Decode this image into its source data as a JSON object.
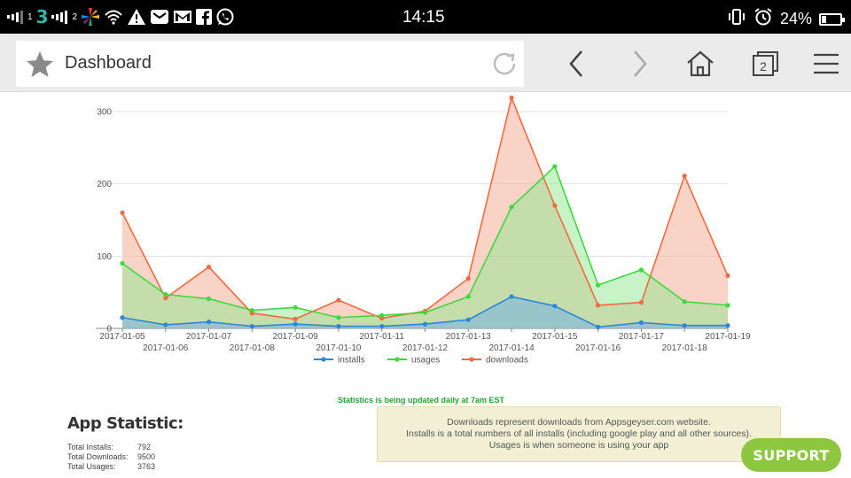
{
  "status_bar": {
    "network_label": "3",
    "sim1": "1",
    "sim2": "2",
    "time": "14:15",
    "battery": "24%",
    "battery_level": 0.24,
    "icons": [
      "signal-icon",
      "signal-icon",
      "pinwheel-icon",
      "wifi-icon",
      "warning-icon",
      "mail-icon",
      "gmail-icon",
      "facebook-icon",
      "whatsapp-icon",
      "vibrate-icon",
      "alarm-icon",
      "battery-icon"
    ]
  },
  "browser": {
    "page_title": "Dashboard",
    "tab_count": "2",
    "icons": [
      "star-icon",
      "reload-icon",
      "back-icon",
      "forward-icon",
      "home-icon",
      "tabs-icon",
      "menu-icon"
    ]
  },
  "chart_data": {
    "type": "area",
    "x": [
      "2017-01-05",
      "2017-01-06",
      "2017-01-07",
      "2017-01-08",
      "2017-01-09",
      "2017-01-10",
      "2017-01-11",
      "2017-01-12",
      "2017-01-13",
      "2017-01-14",
      "2017-01-15",
      "2017-01-16",
      "2017-01-17",
      "2017-01-18",
      "2017-01-19"
    ],
    "ylim": [
      0,
      300
    ],
    "yticks": [
      0,
      100,
      200,
      300
    ],
    "grid": true,
    "legend_position": "bottom",
    "series": [
      {
        "name": "installs",
        "color": "#2d86d6",
        "fill": "#6aaee8",
        "values": [
          15,
          5,
          9,
          3,
          6,
          3,
          3,
          6,
          12,
          44,
          31,
          2,
          8,
          4,
          4
        ]
      },
      {
        "name": "usages",
        "color": "#3fd83f",
        "fill": "#8fe88f",
        "values": [
          90,
          47,
          41,
          25,
          29,
          15,
          18,
          22,
          44,
          168,
          224,
          60,
          81,
          37,
          32
        ]
      },
      {
        "name": "downloads",
        "color": "#ef6b40",
        "fill": "#f6a88f",
        "values": [
          160,
          42,
          85,
          21,
          13,
          39,
          14,
          24,
          69,
          319,
          170,
          32,
          36,
          211,
          73
        ]
      }
    ]
  },
  "notice": "Statistics is being updated daily at 7am EST",
  "stats": {
    "title": "App Statistic:",
    "rows": [
      {
        "label": "Total Installs:",
        "value": "792"
      },
      {
        "label": "Total Downloads:",
        "value": "9500"
      },
      {
        "label": "Total Usages:",
        "value": "3763"
      }
    ]
  },
  "info": {
    "line1": "Downloads represent downloads from Appsgeyser.com website.",
    "line2": "Installs is a total numbers of all installs (including google play and all other sources).",
    "line3": "Usages is when someone is using your app"
  },
  "support_label": "SUPPORT"
}
